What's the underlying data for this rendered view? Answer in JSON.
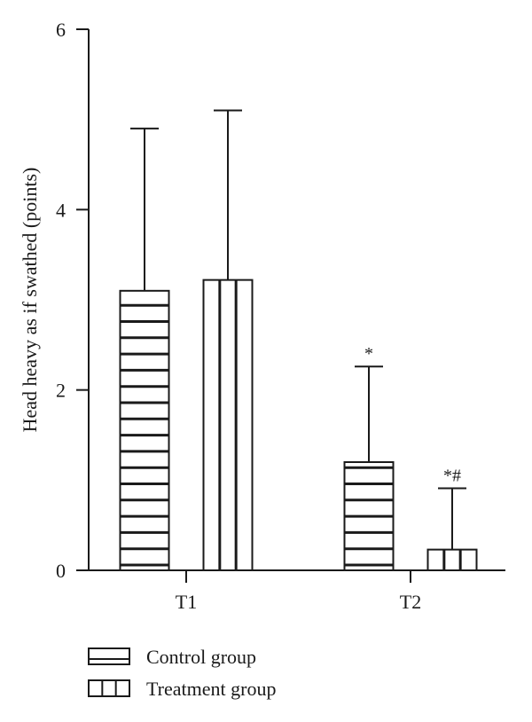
{
  "chart_data": {
    "type": "bar",
    "categories": [
      "T1",
      "T2"
    ],
    "series": [
      {
        "name": "Control group",
        "values": [
          3.1,
          1.2
        ],
        "errors": [
          1.8,
          1.06
        ],
        "pattern": "horizontal-stripes",
        "annotations": [
          "",
          "*"
        ]
      },
      {
        "name": "Treatment group",
        "values": [
          3.22,
          0.23
        ],
        "errors": [
          1.88,
          0.68
        ],
        "pattern": "vertical-stripes",
        "annotations": [
          "",
          "*#"
        ]
      }
    ],
    "ylabel": "Head heavy as if swathed (points)",
    "xlabel": "",
    "ylim": [
      0,
      6
    ],
    "yticks": [
      0,
      2,
      4,
      6
    ],
    "grid": false,
    "legend_position": "bottom-left",
    "colors": {
      "stroke": "#1a1a1a",
      "fill": "#ffffff"
    }
  }
}
